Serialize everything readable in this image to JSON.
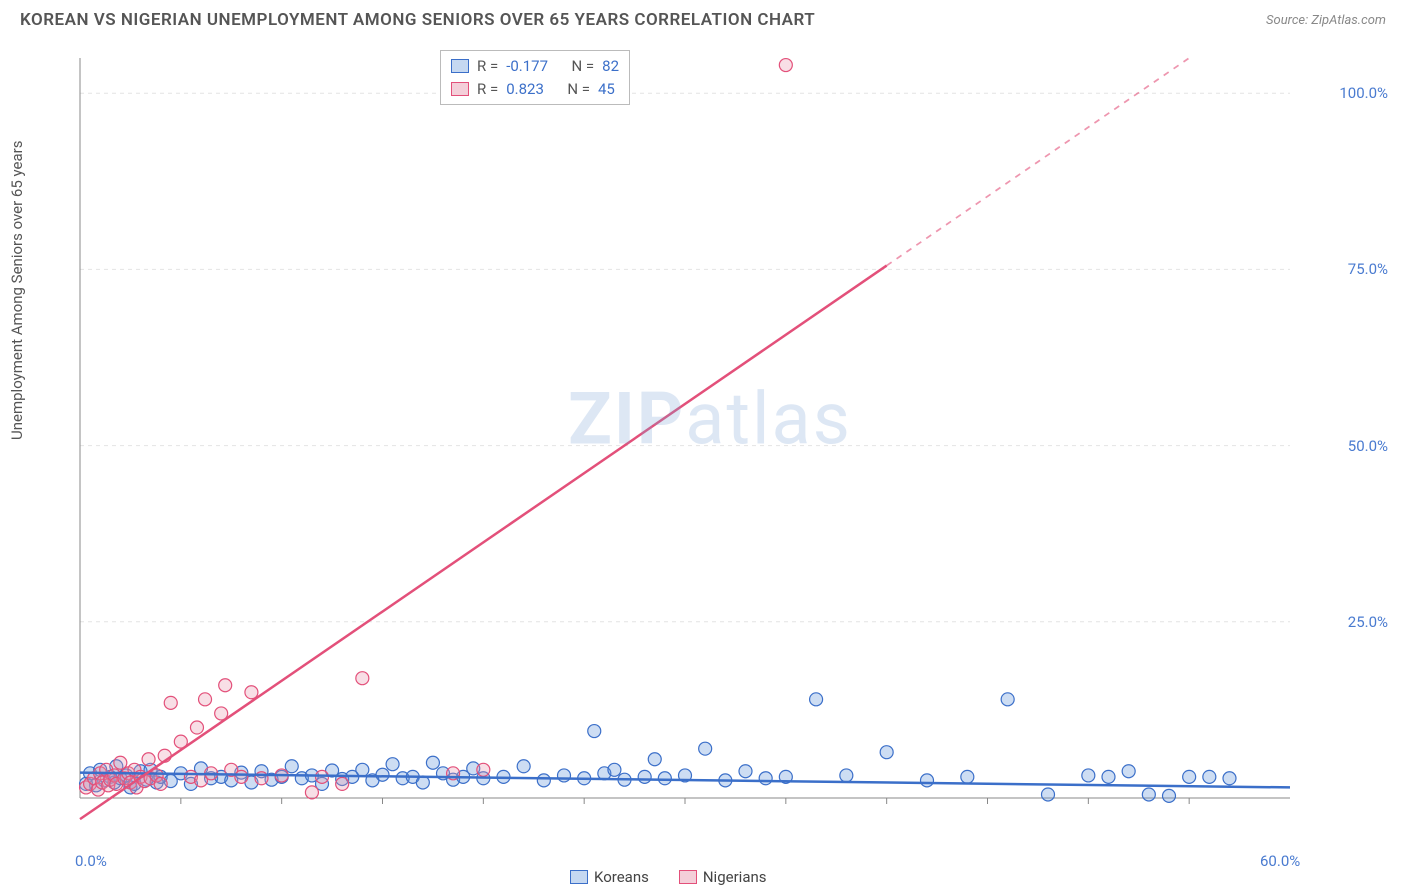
{
  "header": {
    "title": "KOREAN VS NIGERIAN UNEMPLOYMENT AMONG SENIORS OVER 65 YEARS CORRELATION CHART",
    "source_label": "Source: ZipAtlas.com"
  },
  "watermark": {
    "bold": "ZIP",
    "rest": "atlas"
  },
  "chart": {
    "type": "scatter-correlation",
    "ylabel": "Unemployment Among Seniors over 65 years",
    "xlim": [
      0,
      60
    ],
    "ylim": [
      0,
      105
    ],
    "x_ticks": [
      0,
      60
    ],
    "x_tick_labels": [
      "0.0%",
      "60.0%"
    ],
    "y_ticks": [
      25,
      50,
      75,
      100
    ],
    "y_tick_labels": [
      "25.0%",
      "50.0%",
      "75.0%",
      "100.0%"
    ],
    "minor_x_ticks": [
      5,
      10,
      15,
      20,
      25,
      30,
      35,
      40,
      45,
      50,
      55
    ],
    "grid_color": "#e4e4e4",
    "grid_dash": "4 4",
    "axis_color": "#888888",
    "background_color": "#ffffff",
    "marker_radius": 6.5,
    "marker_stroke_width": 1.2,
    "line_width": 2.5,
    "point_fill_opacity": 0.3,
    "series": [
      {
        "name": "Koreans",
        "color": "#5a8fd6",
        "stroke": "#3b6fc9",
        "stats": {
          "R": "-0.177",
          "N": "82"
        },
        "trend": {
          "x1": 0,
          "y1": 3.6,
          "x2": 60,
          "y2": 1.5,
          "dash_from_x": 60
        },
        "points": [
          [
            0.3,
            2.0
          ],
          [
            0.5,
            3.5
          ],
          [
            0.8,
            1.8
          ],
          [
            1.0,
            4.0
          ],
          [
            1.2,
            2.5
          ],
          [
            1.5,
            3.0
          ],
          [
            1.7,
            2.2
          ],
          [
            1.8,
            4.5
          ],
          [
            2.0,
            2.8
          ],
          [
            2.3,
            3.2
          ],
          [
            2.5,
            1.5
          ],
          [
            2.7,
            2.0
          ],
          [
            3.0,
            3.8
          ],
          [
            3.3,
            2.6
          ],
          [
            3.5,
            4.0
          ],
          [
            3.8,
            2.2
          ],
          [
            4.0,
            3.0
          ],
          [
            4.5,
            2.4
          ],
          [
            5.0,
            3.5
          ],
          [
            5.5,
            2.0
          ],
          [
            6.0,
            4.2
          ],
          [
            6.5,
            2.8
          ],
          [
            7.0,
            3.0
          ],
          [
            7.5,
            2.5
          ],
          [
            8.0,
            3.6
          ],
          [
            8.5,
            2.2
          ],
          [
            9.0,
            3.8
          ],
          [
            9.5,
            2.6
          ],
          [
            10.0,
            3.0
          ],
          [
            10.5,
            4.5
          ],
          [
            11.0,
            2.8
          ],
          [
            11.5,
            3.2
          ],
          [
            12.0,
            2.0
          ],
          [
            12.5,
            3.9
          ],
          [
            13.0,
            2.7
          ],
          [
            13.5,
            3.0
          ],
          [
            14.0,
            4.0
          ],
          [
            14.5,
            2.5
          ],
          [
            15.0,
            3.3
          ],
          [
            15.5,
            4.8
          ],
          [
            16.0,
            2.8
          ],
          [
            16.5,
            3.0
          ],
          [
            17.0,
            2.2
          ],
          [
            17.5,
            5.0
          ],
          [
            18.0,
            3.5
          ],
          [
            18.5,
            2.6
          ],
          [
            19.0,
            3.0
          ],
          [
            19.5,
            4.2
          ],
          [
            20.0,
            2.8
          ],
          [
            21.0,
            3.0
          ],
          [
            22.0,
            4.5
          ],
          [
            23.0,
            2.5
          ],
          [
            24.0,
            3.2
          ],
          [
            25.0,
            2.8
          ],
          [
            25.5,
            9.5
          ],
          [
            26.0,
            3.5
          ],
          [
            26.5,
            4.0
          ],
          [
            27.0,
            2.6
          ],
          [
            28.0,
            3.0
          ],
          [
            28.5,
            5.5
          ],
          [
            29.0,
            2.8
          ],
          [
            30.0,
            3.2
          ],
          [
            31.0,
            7.0
          ],
          [
            32.0,
            2.5
          ],
          [
            33.0,
            3.8
          ],
          [
            34.0,
            2.8
          ],
          [
            35.0,
            3.0
          ],
          [
            36.5,
            14.0
          ],
          [
            38.0,
            3.2
          ],
          [
            40.0,
            6.5
          ],
          [
            42.0,
            2.5
          ],
          [
            44.0,
            3.0
          ],
          [
            46.0,
            14.0
          ],
          [
            48.0,
            0.5
          ],
          [
            50.0,
            3.2
          ],
          [
            51.0,
            3.0
          ],
          [
            52.0,
            3.8
          ],
          [
            53.0,
            0.5
          ],
          [
            54.0,
            0.3
          ],
          [
            55.0,
            3.0
          ],
          [
            56.0,
            3.0
          ],
          [
            57.0,
            2.8
          ]
        ]
      },
      {
        "name": "Nigerians",
        "color": "#e795ab",
        "stroke": "#e3507a",
        "stats": {
          "R": "0.823",
          "N": "45"
        },
        "trend": {
          "x1": 0,
          "y1": -3.0,
          "x2": 55,
          "y2": 105,
          "dash_from_x": 40
        },
        "points": [
          [
            0.3,
            1.5
          ],
          [
            0.5,
            2.0
          ],
          [
            0.7,
            2.8
          ],
          [
            0.9,
            1.2
          ],
          [
            1.0,
            3.5
          ],
          [
            1.1,
            2.2
          ],
          [
            1.3,
            4.0
          ],
          [
            1.4,
            1.8
          ],
          [
            1.5,
            2.6
          ],
          [
            1.7,
            3.2
          ],
          [
            1.8,
            2.0
          ],
          [
            2.0,
            5.0
          ],
          [
            2.2,
            2.8
          ],
          [
            2.4,
            3.5
          ],
          [
            2.5,
            2.2
          ],
          [
            2.7,
            4.0
          ],
          [
            2.8,
            1.5
          ],
          [
            3.0,
            3.0
          ],
          [
            3.2,
            2.4
          ],
          [
            3.4,
            5.5
          ],
          [
            3.5,
            2.8
          ],
          [
            3.8,
            3.2
          ],
          [
            4.0,
            2.0
          ],
          [
            4.2,
            6.0
          ],
          [
            4.5,
            13.5
          ],
          [
            5.0,
            8.0
          ],
          [
            5.5,
            3.0
          ],
          [
            5.8,
            10.0
          ],
          [
            6.0,
            2.5
          ],
          [
            6.2,
            14.0
          ],
          [
            6.5,
            3.5
          ],
          [
            7.0,
            12.0
          ],
          [
            7.2,
            16.0
          ],
          [
            7.5,
            4.0
          ],
          [
            8.0,
            3.0
          ],
          [
            8.5,
            15.0
          ],
          [
            9.0,
            2.8
          ],
          [
            10.0,
            3.2
          ],
          [
            11.5,
            0.8
          ],
          [
            12.0,
            3.0
          ],
          [
            13.0,
            2.0
          ],
          [
            14.0,
            17.0
          ],
          [
            18.5,
            3.5
          ],
          [
            20.0,
            4.0
          ],
          [
            35.0,
            104.0
          ]
        ]
      }
    ]
  },
  "legend_top": {
    "rows": [
      {
        "swatch_fill": "rgba(90,143,214,0.35)",
        "swatch_border": "#3b6fc9",
        "r_label": "R =",
        "r_val": "-0.177",
        "n_label": "N =",
        "n_val": "82"
      },
      {
        "swatch_fill": "rgba(231,149,171,0.45)",
        "swatch_border": "#e3507a",
        "r_label": "R =",
        "r_val": "0.823",
        "n_label": "N =",
        "n_val": "45"
      }
    ]
  },
  "legend_bottom": [
    {
      "label": "Koreans",
      "fill": "rgba(90,143,214,0.35)",
      "border": "#3b6fc9"
    },
    {
      "label": "Nigerians",
      "fill": "rgba(231,149,171,0.45)",
      "border": "#e3507a"
    }
  ]
}
